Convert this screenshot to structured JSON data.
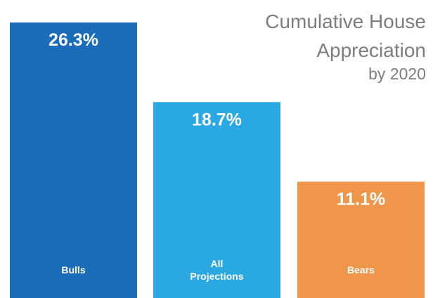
{
  "chart_data": {
    "type": "bar",
    "title": [
      "Cumulative House",
      "Appreciation",
      "by 2020"
    ],
    "categories": [
      [
        "Bulls"
      ],
      [
        "All",
        "Projections"
      ],
      [
        "Bears"
      ]
    ],
    "values": [
      26.3,
      18.7,
      11.1
    ],
    "value_labels": [
      "26.3%",
      "18.7%",
      "11.1%"
    ],
    "colors": [
      "#1a6bb8",
      "#2aa8e2",
      "#f0964a"
    ],
    "ylim": [
      0,
      26.3
    ],
    "grid": false,
    "legend": "none"
  }
}
